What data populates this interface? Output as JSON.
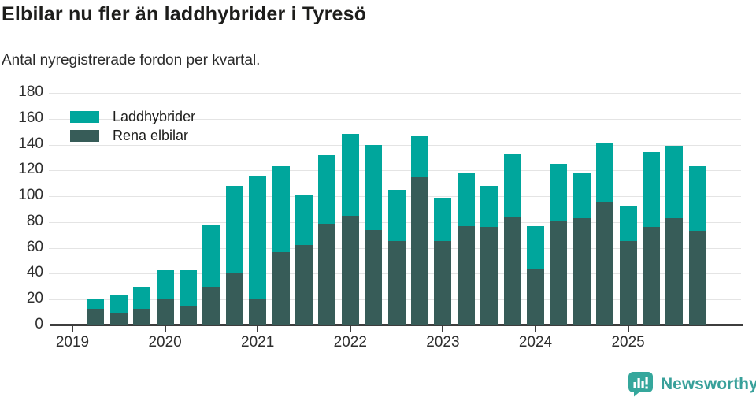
{
  "header": {
    "title": "Elbilar nu fler än laddhybrider i Tyresö",
    "subtitle": "Antal nyregistrerade fordon per kvartal."
  },
  "legend": {
    "items": [
      {
        "label": "Laddhybrider",
        "color": "#00a69c"
      },
      {
        "label": "Rena elbilar",
        "color": "#375c58"
      }
    ]
  },
  "colors": {
    "laddhybrider": "#00a69c",
    "rena_elbilar": "#375c58",
    "grid": "#e4e4e4",
    "axis": "#3d3d3d",
    "text": "#1d1d1b",
    "logo": "#38a09a"
  },
  "footer": {
    "brand": "Newsworthy",
    "icon": "bar-chart-speech-bubble-icon"
  },
  "chart_data": {
    "type": "bar",
    "stacked": true,
    "title": "Elbilar nu fler än laddhybrider i Tyresö",
    "subtitle": "Antal nyregistrerade fordon per kvartal.",
    "xlabel": "",
    "ylabel": "",
    "ylim": [
      0,
      180
    ],
    "yticks": [
      0,
      20,
      40,
      60,
      80,
      100,
      120,
      140,
      160,
      180
    ],
    "grid": true,
    "legend_position": "top-left",
    "x": [
      "2019-K2",
      "2019-K3",
      "2019-K4",
      "2020-K1",
      "2020-K2",
      "2020-K3",
      "2020-K4",
      "2021-K1",
      "2021-K2",
      "2021-K3",
      "2021-K4",
      "2022-K1",
      "2022-K2",
      "2022-K3",
      "2022-K4",
      "2023-K1",
      "2023-K2",
      "2023-K3",
      "2023-K4",
      "2024-K1",
      "2024-K2",
      "2024-K3",
      "2024-K4",
      "2025-K1",
      "2025-K2",
      "2025-K3",
      "2025-K4"
    ],
    "year_ticks": [
      2019,
      2020,
      2021,
      2022,
      2023,
      2024,
      2025
    ],
    "series": [
      {
        "name": "Rena elbilar",
        "color": "#375c58",
        "values": [
          13,
          10,
          13,
          21,
          15,
          30,
          40,
          20,
          57,
          62,
          79,
          85,
          74,
          65,
          115,
          65,
          77,
          76,
          84,
          44,
          81,
          83,
          95,
          65,
          76,
          83,
          73
        ]
      },
      {
        "name": "Laddhybrider",
        "color": "#00a69c",
        "values": [
          7,
          14,
          17,
          22,
          28,
          48,
          68,
          96,
          66,
          39,
          53,
          63,
          66,
          40,
          32,
          34,
          41,
          32,
          49,
          33,
          44,
          35,
          46,
          28,
          58,
          56,
          50
        ]
      }
    ]
  }
}
